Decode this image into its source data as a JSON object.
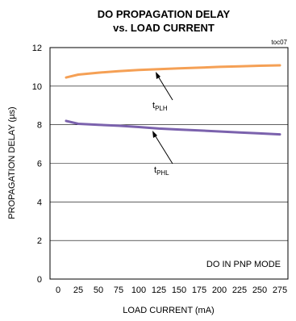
{
  "chart_data": {
    "type": "line",
    "title_line1": "DO PROPAGATION DELAY",
    "title_line2": "vs. LOAD CURRENT",
    "figure_code": "toc07",
    "xlabel": "LOAD CURRENT  (mA)",
    "ylabel": "PROPAGATION DELAY (µs)",
    "xlim": [
      0,
      275
    ],
    "ylim": [
      0,
      12
    ],
    "xticks": [
      "0",
      "25",
      "50",
      "75",
      "100",
      "125",
      "150",
      "175",
      "200",
      "225",
      "250",
      "275"
    ],
    "yticks": [
      "0",
      "2",
      "4",
      "6",
      "8",
      "10",
      "12"
    ],
    "grid": "horizontal",
    "annotation": "DO IN PNP MODE",
    "series": [
      {
        "label": "t",
        "label_sub": "PLH",
        "color": "#f5a055",
        "x": [
          10,
          25,
          50,
          75,
          100,
          125,
          150,
          175,
          200,
          225,
          250,
          275
        ],
        "y": [
          10.45,
          10.6,
          10.7,
          10.78,
          10.84,
          10.88,
          10.92,
          10.96,
          11.0,
          11.03,
          11.06,
          11.08
        ]
      },
      {
        "label": "t",
        "label_sub": "PHL",
        "color": "#7b62ad",
        "x": [
          10,
          25,
          50,
          75,
          100,
          125,
          150,
          175,
          200,
          225,
          250,
          275
        ],
        "y": [
          8.2,
          8.05,
          8.0,
          7.95,
          7.88,
          7.8,
          7.75,
          7.7,
          7.65,
          7.6,
          7.55,
          7.5
        ]
      }
    ]
  }
}
